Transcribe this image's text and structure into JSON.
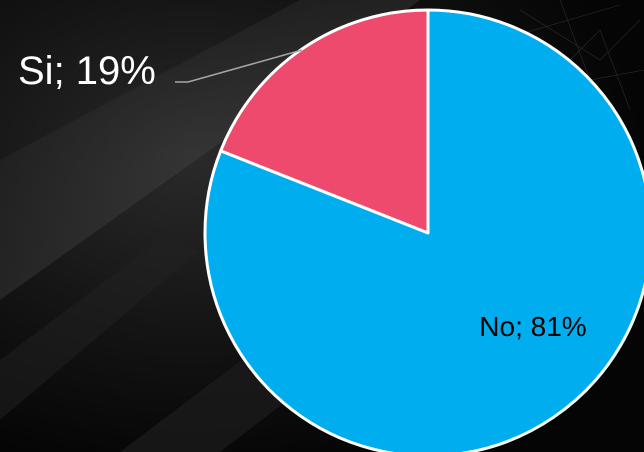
{
  "chart_data": {
    "type": "pie",
    "title": "",
    "slices": [
      {
        "label": "Si",
        "value": 19,
        "label_text": "Si; 19%",
        "color": "#EE4A6E"
      },
      {
        "label": "No",
        "value": 81,
        "label_text": "No; 81%",
        "color": "#00AEEF"
      }
    ],
    "slice_border_color": "#FFFFFF",
    "label_colors": {
      "outside": "#FFFFFF",
      "inside": "#000000"
    },
    "leader_line_color": "#A6A6A6"
  }
}
